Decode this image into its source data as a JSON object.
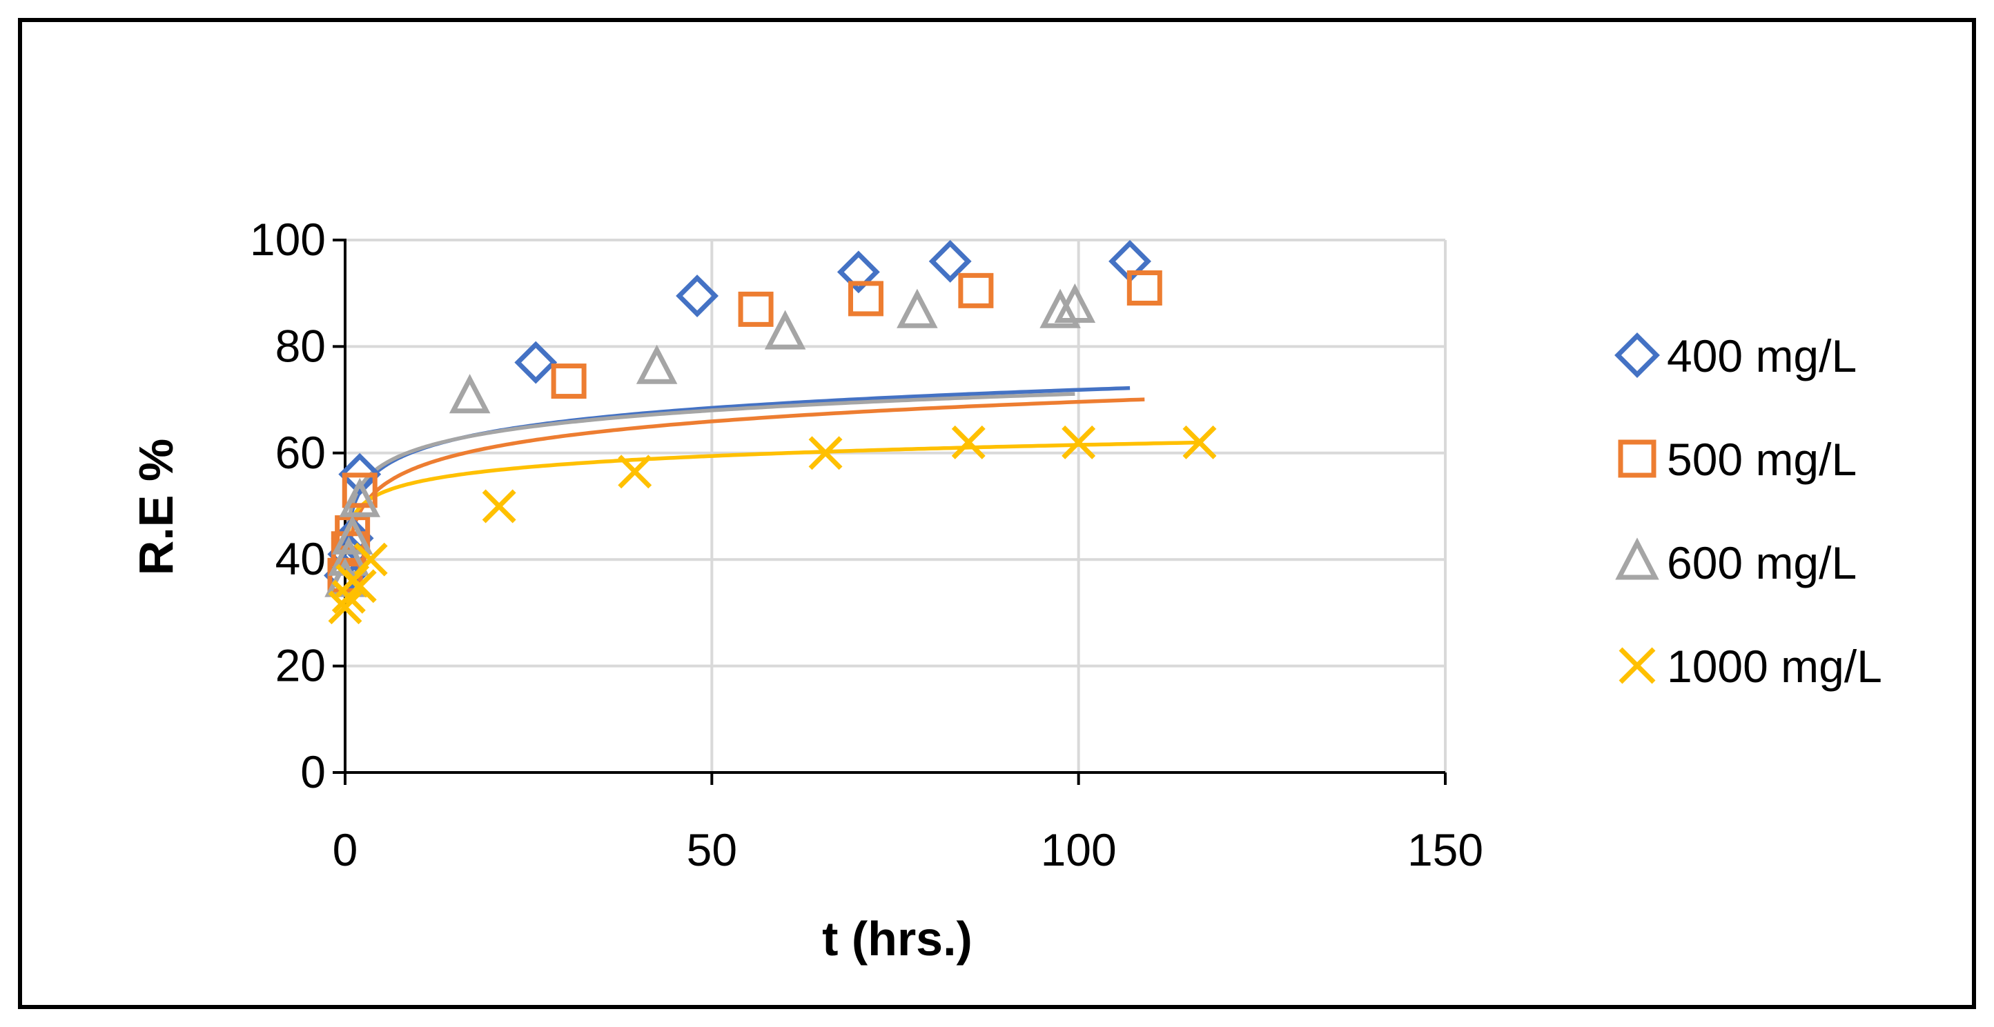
{
  "chart_data": {
    "type": "scatter",
    "title": "",
    "xlabel": "t (hrs.)",
    "ylabel": "R.E %",
    "xlim": [
      0,
      150
    ],
    "ylim": [
      0,
      100
    ],
    "xticks": [
      0,
      50,
      100,
      150
    ],
    "yticks": [
      0,
      20,
      40,
      60,
      80,
      100
    ],
    "grid": true,
    "legend_position": "right",
    "trendline": "logarithmic",
    "series": [
      {
        "name": "400 mg/L",
        "marker": "diamond",
        "color": "#4472c4",
        "x": [
          0,
          0.5,
          1,
          2,
          26,
          48,
          70,
          82.5,
          107
        ],
        "y": [
          37,
          41,
          44,
          56,
          77,
          89.5,
          94,
          96,
          96
        ],
        "fit": {
          "a": 4.9,
          "b": 49.3
        }
      },
      {
        "name": "500 mg/L",
        "marker": "square",
        "color": "#ed7d31",
        "x": [
          0,
          0.5,
          1,
          2,
          30.5,
          56,
          71,
          86,
          109
        ],
        "y": [
          37,
          42,
          45,
          53,
          73.5,
          87,
          89,
          90.5,
          91
        ],
        "fit": {
          "a": 5.3,
          "b": 45.2
        }
      },
      {
        "name": "600 mg/L",
        "marker": "triangle",
        "color": "#a5a5a5",
        "x": [
          0,
          0.5,
          1,
          2,
          17,
          42.5,
          60,
          78,
          97.5,
          99.5
        ],
        "y": [
          36,
          40,
          44,
          51,
          70.5,
          76,
          82.5,
          86.5,
          86.5,
          87.5
        ],
        "fit": {
          "a": 4.5,
          "b": 50.4
        }
      },
      {
        "name": "1000 mg/L",
        "marker": "x",
        "color": "#ffc000",
        "x": [
          0,
          0.5,
          1,
          2,
          3.5,
          21,
          39.5,
          65.5,
          85,
          100,
          116.5
        ],
        "y": [
          31,
          33,
          36,
          35,
          40,
          50,
          56.5,
          60,
          62,
          62,
          62
        ],
        "fit": {
          "a": 3.0,
          "b": 47.7
        }
      }
    ]
  }
}
